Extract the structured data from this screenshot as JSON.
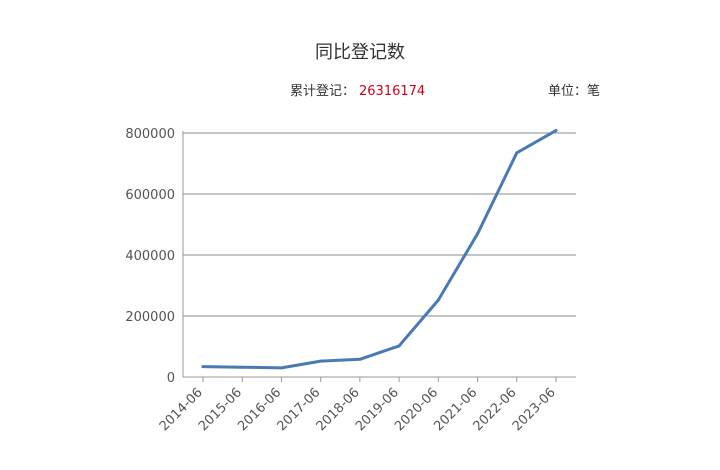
{
  "header": {
    "title": "同比登记数",
    "total_label": "累计登记：",
    "total_value": "26316174",
    "unit_label": "单位：笔"
  },
  "chart_data": {
    "type": "line",
    "title": "同比登记数",
    "xlabel": "",
    "ylabel": "",
    "categories": [
      "2014-06",
      "2015-06",
      "2016-06",
      "2017-06",
      "2018-06",
      "2019-06",
      "2020-06",
      "2021-06",
      "2022-06",
      "2023-06"
    ],
    "series": [
      {
        "values": [
          34000,
          32000,
          30000,
          52000,
          58000,
          102000,
          252000,
          470000,
          735000,
          808000
        ]
      }
    ],
    "ylim": [
      0,
      800000
    ],
    "yticks": [
      0,
      200000,
      400000,
      600000,
      800000
    ],
    "grid": true,
    "line_color": "#4a7ab5"
  }
}
